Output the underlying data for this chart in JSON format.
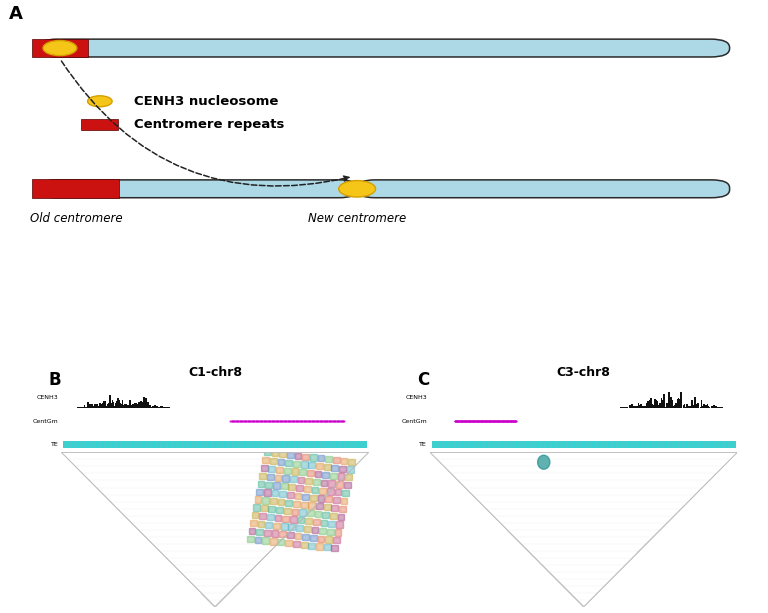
{
  "bg_color": "#ffffff",
  "chrom_color": "#add8e6",
  "chrom_edge_color": "#2a2a2a",
  "repeat_color": "#cc1111",
  "nucleosome_color": "#f5c518",
  "nucleosome_edge": "#d4a000",
  "legend_nucleosome_label": "CENH3 nucleosome",
  "legend_repeat_label": "Centromere repeats",
  "old_centromere_label": "Old centromere",
  "new_centromere_label": "New centromere",
  "panel_a_label": "A",
  "panel_b_label": "B",
  "panel_c_label": "C",
  "title_b": "C1-chr8",
  "title_c": "C3-chr8",
  "track_cyan": "#22cccc",
  "track_magenta": "#cc00cc",
  "track_black": "#111111",
  "heatmap_grid_color": "#e0e0e0"
}
